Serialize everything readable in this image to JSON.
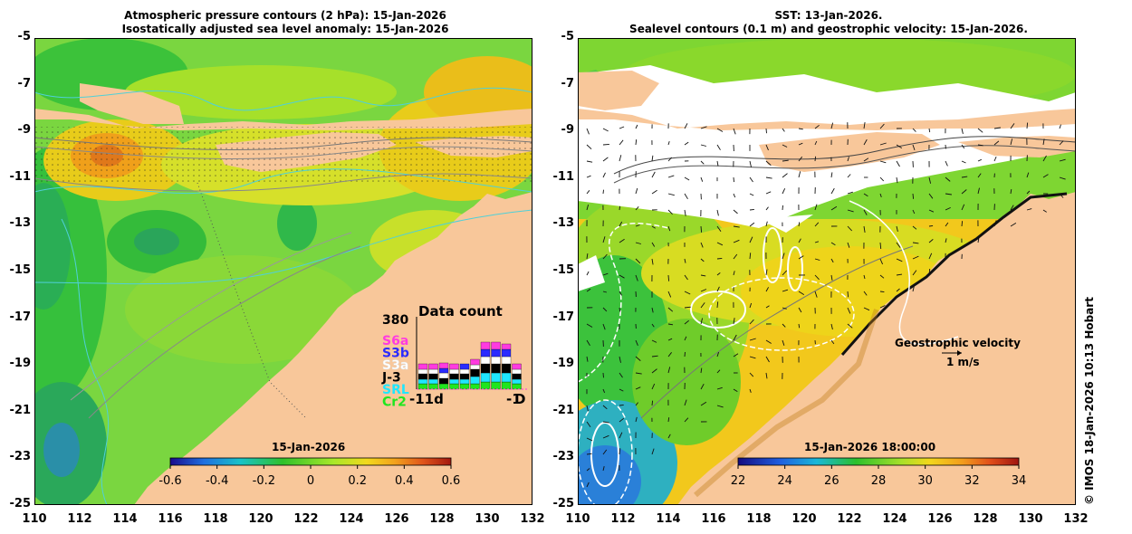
{
  "left_panel": {
    "title_line1": "Atmospheric pressure contours (2 hPa): 15-Jan-2026",
    "title_line2": "Isostatically adjusted sea level anomaly: 15-Jan-2026",
    "colorbar": {
      "date": "15-Jan-2026",
      "ticks": [
        "-0.6",
        "-0.4",
        "-0.2",
        "0",
        "0.2",
        "0.4",
        "0.6"
      ],
      "colors": [
        "#1a0a8c",
        "#1f6fe0",
        "#19c3c8",
        "#2fc12b",
        "#a8e82a",
        "#f2d91c",
        "#f2a21c",
        "#e0541a",
        "#a3170e"
      ]
    },
    "inset": {
      "title": "Data count",
      "ymax_label": "380",
      "missions": [
        {
          "name": "S6a",
          "color": "#ff3be0"
        },
        {
          "name": "S3b",
          "color": "#2b2bff"
        },
        {
          "name": "S3a",
          "color": "#ffffff"
        },
        {
          "name": "J-3",
          "color": "#000000"
        },
        {
          "name": "SRL",
          "color": "#1fe6ff"
        },
        {
          "name": "Cr2",
          "color": "#1fe61f"
        }
      ],
      "x_left_label": "-11d",
      "x_right_label": "-1",
      "x_end_label": "D"
    }
  },
  "right_panel": {
    "title_line1": "SST: 13-Jan-2026.",
    "title_line2": "Sealevel contours (0.1 m) and geostrophic velocity: 15-Jan-2026.",
    "colorbar": {
      "date": "15-Jan-2026 18:00:00",
      "ticks": [
        "22",
        "24",
        "26",
        "28",
        "30",
        "32",
        "34"
      ],
      "colors": [
        "#140a80",
        "#1f5fe0",
        "#19b8d8",
        "#2cc02c",
        "#a6e02a",
        "#f2d81c",
        "#f29c1c",
        "#e04d1a",
        "#9e1510"
      ]
    },
    "velocity_legend": {
      "label": "Geostrophic velocity",
      "scale": "1 m/s"
    }
  },
  "axes": {
    "lat_labels": [
      "-5",
      "-7",
      "-9",
      "-11",
      "-13",
      "-15",
      "-17",
      "-19",
      "-21",
      "-23",
      "-25"
    ],
    "lon_labels": [
      "110",
      "112",
      "114",
      "116",
      "118",
      "120",
      "122",
      "124",
      "126",
      "128",
      "130",
      "132"
    ]
  },
  "credit": "© IMOS 18-Jan-2026 10:13 Hobart"
}
